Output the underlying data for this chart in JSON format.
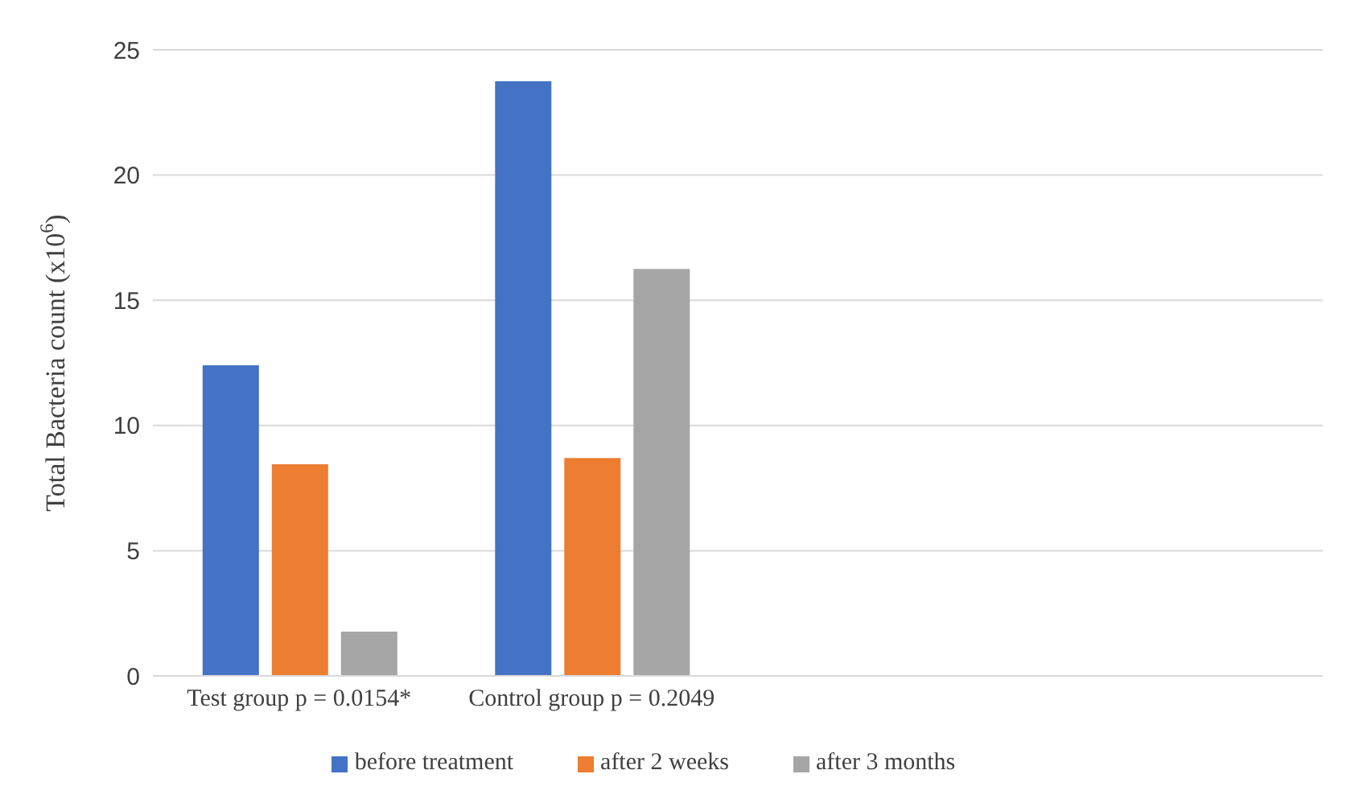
{
  "chart_data": {
    "type": "bar",
    "ylabel": "Total Bacteria count (x10$^{6}$)",
    "categories": [
      "Test group p = 0.0154*",
      "Control group p = 0.2049",
      null,
      null
    ],
    "series": [
      {
        "name": "before treatment",
        "color": "#4472c4",
        "values": [
          12.4,
          23.75,
          null,
          null
        ]
      },
      {
        "name": "after 2 weeks",
        "color": "#ed7d31",
        "values": [
          8.45,
          8.7,
          null,
          null
        ]
      },
      {
        "name": "after 3 months",
        "color": "#a5a5a5",
        "values": [
          1.77,
          16.25,
          null,
          null
        ]
      }
    ],
    "ylim": [
      0,
      25
    ],
    "yticks": [
      0,
      5,
      10,
      15,
      20,
      25
    ],
    "grid": "y",
    "legend": "bottom"
  }
}
